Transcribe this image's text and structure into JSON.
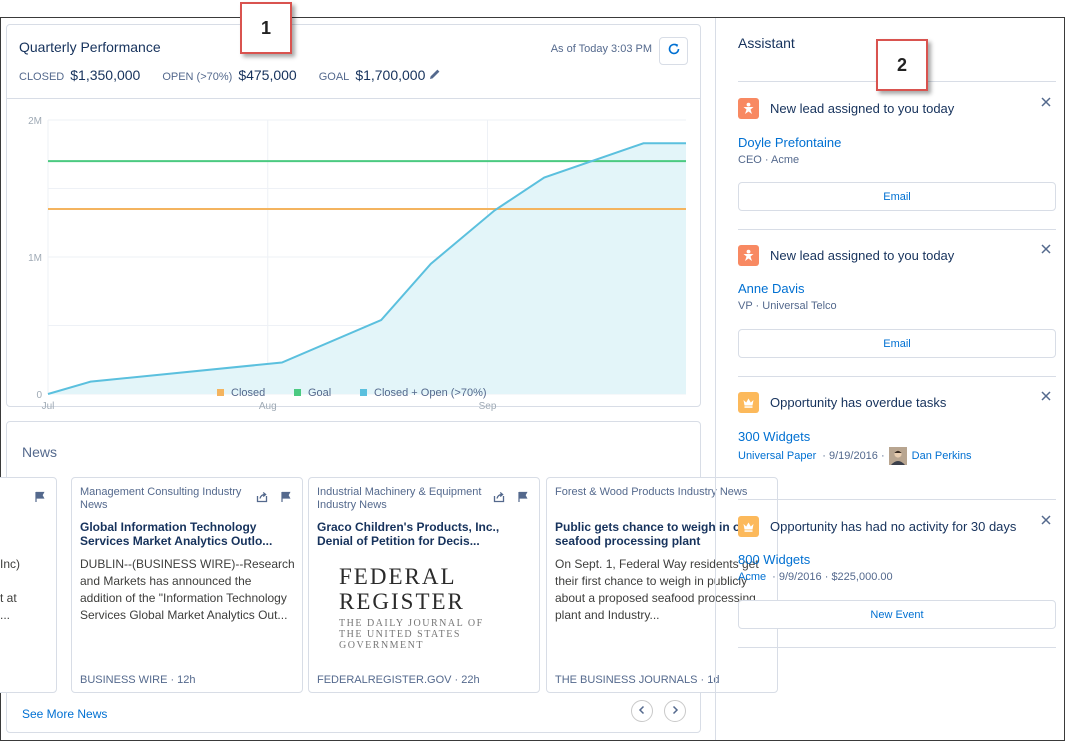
{
  "quarterly": {
    "title": "Quarterly Performance",
    "as_of": "As of Today 3:03 PM",
    "closed_label": "CLOSED",
    "closed_value": "$1,350,000",
    "open_label": "OPEN (>70%)",
    "open_value": "$475,000",
    "goal_label": "GOAL",
    "goal_value": "$1,700,000"
  },
  "chart_data": {
    "type": "line",
    "x_ticks": [
      "Jul",
      "Aug",
      "Sep"
    ],
    "y_ticks": [
      "0",
      "1M",
      "2M"
    ],
    "ylim": [
      0,
      2000000
    ],
    "x_range": [
      0,
      90
    ],
    "x_tick_positions": [
      0,
      31,
      62
    ],
    "grid": true,
    "legend_position": "bottom",
    "series": [
      {
        "name": "Closed",
        "color": "#f4b45f",
        "constant": 1350000
      },
      {
        "name": "Goal",
        "color": "#4bca81",
        "constant": 1700000
      },
      {
        "name": "Closed + Open (>70%)",
        "color": "#5bc0de",
        "x": [
          0,
          6,
          33,
          47,
          54,
          63,
          70,
          84,
          90
        ],
        "y": [
          0,
          90000,
          230000,
          540000,
          950000,
          1340000,
          1580000,
          1830000,
          1830000
        ]
      }
    ]
  },
  "news": {
    "title": "News",
    "see_more": "See More News",
    "partial_left": {
      "line1": "Inc)",
      "line2": "t at",
      "line3": "..."
    },
    "items": [
      {
        "source": "Management Consulting Industry News",
        "headline": "Global Information Technology Services Market Analytics Outlo...",
        "body": "DUBLIN--(BUSINESS WIRE)--Research and Markets has announced the addition of the \"Information Technology Services Global Market Analytics Out...",
        "footer": "BUSINESS WIRE · 12h"
      },
      {
        "source": "Industrial Machinery & Equipment Industry News",
        "headline": "Graco Children's Products, Inc., Denial of Petition for Decis...",
        "image_line1": "FEDERAL",
        "image_line2": "REGISTER",
        "image_sub1": "THE DAILY JOURNAL OF",
        "image_sub2": "THE UNITED STATES",
        "image_sub3": "GOVERNMENT",
        "footer": "FEDERALREGISTER.GOV · 22h"
      },
      {
        "source": "Forest & Wood Products Industry News",
        "headline": "Public gets chance to weigh in on seafood processing plant",
        "body": "On Sept. 1, Federal Way residents get their first chance to weigh in publicly about a proposed seafood processing plant and Industry...",
        "footer": "THE BUSINESS JOURNALS · 1d"
      }
    ]
  },
  "assistant": {
    "title": "Assistant",
    "items": [
      {
        "heading": "New lead assigned to you today",
        "name": "Doyle Prefontaine",
        "meta": "CEO · Acme",
        "button": "Email"
      },
      {
        "heading": "New lead assigned to you today",
        "name": "Anne Davis",
        "meta": "VP · Universal Telco",
        "button": "Email"
      },
      {
        "heading": "Opportunity has overdue tasks",
        "name": "300 Widgets",
        "account": "Universal Paper",
        "date": "· 9/19/2016 ·",
        "owner": "Dan Perkins"
      },
      {
        "heading": "Opportunity has had no activity for 30 days",
        "name": "800 Widgets",
        "account": "Acme",
        "meta_rest": "· 9/9/2016 · $225,000.00",
        "button": "New Event"
      }
    ]
  },
  "callouts": [
    "1",
    "2"
  ],
  "colors": {
    "lead_icon": "#f88962",
    "opportunity_icon": "#fcb95b",
    "link": "#0070d2"
  }
}
